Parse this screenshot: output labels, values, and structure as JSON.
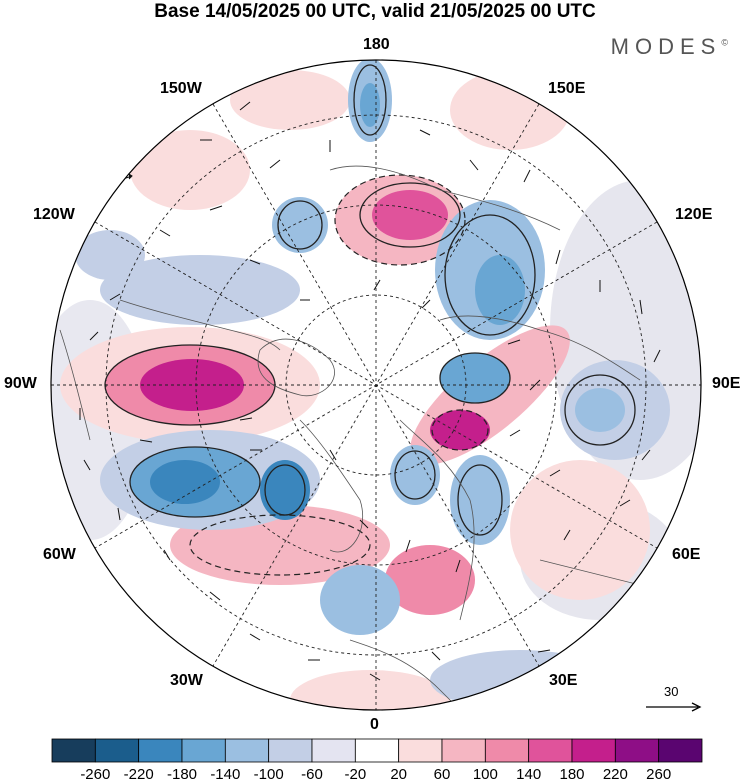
{
  "title": "Base 14/05/2025 00 UTC, valid 21/05/2025 00 UTC",
  "brand": {
    "name": "MODES",
    "mark": "©"
  },
  "longitude_labels": {
    "top": "180",
    "bottom": "0",
    "left": "90W",
    "right": "90E",
    "upper_left": "150W",
    "upper_right": "150E",
    "mid_left_upper": "120W",
    "mid_right_upper": "120E",
    "mid_left_lower": "60W",
    "mid_right_lower": "60E",
    "lower_left": "30W",
    "lower_right": "30E"
  },
  "reference_vector": {
    "value": "30",
    "icon": "arrow-right-icon"
  },
  "colorbar": {
    "labels": [
      "-260",
      "-220",
      "-180",
      "-140",
      "-100",
      "-60",
      "-20",
      "20",
      "60",
      "100",
      "140",
      "180",
      "220",
      "260"
    ],
    "colors": [
      "#173d5c",
      "#1b5d8c",
      "#3a86bd",
      "#69a6d3",
      "#9bbfe1",
      "#c3cfe6",
      "#e4e4f1",
      "#ffffff",
      "#fadddd",
      "#f5b6c2",
      "#ef8aa9",
      "#e0539b",
      "#c41f8c",
      "#8e0e86",
      "#5a0570"
    ]
  }
}
